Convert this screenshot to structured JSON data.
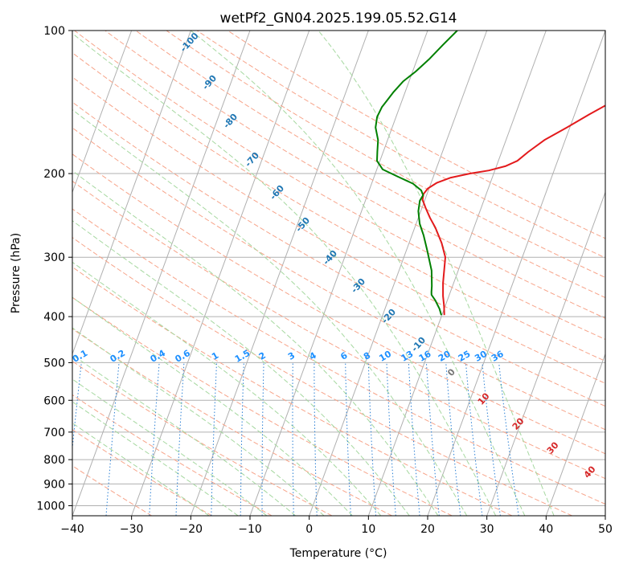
{
  "chart_data": {
    "type": "line",
    "title": "wetPf2_GN04.2025.199.05.52.G14",
    "xlabel": "Temperature (°C)",
    "ylabel": "Pressure (hPa)",
    "xlim": [
      -40,
      50
    ],
    "ylim": [
      1050,
      100
    ],
    "y_scale": "log",
    "grid": true,
    "x_ticks": [
      -40,
      -30,
      -20,
      -10,
      0,
      10,
      20,
      30,
      40,
      50
    ],
    "x_tick_labels": [
      "−40",
      "−30",
      "−20",
      "−10",
      "0",
      "10",
      "20",
      "30",
      "40",
      "50"
    ],
    "y_ticks": [
      1000,
      900,
      800,
      700,
      600,
      500,
      400,
      300,
      200,
      100
    ],
    "y_tick_labels": [
      "1000",
      "900",
      "800",
      "700",
      "600",
      "500",
      "400",
      "300",
      "200",
      "100"
    ],
    "series": [
      {
        "name": "",
        "color": "#e31a1c",
        "x": [
          10.4,
          9.8,
          9.0,
          8.2,
          7.0,
          5.5,
          3.5,
          2.0,
          0.6,
          -0.4,
          -0.6,
          -0.2,
          1.0,
          3.0,
          6.0,
          9.0,
          11.5,
          13.2,
          14.5,
          16.5,
          19.5,
          22.5,
          26.0,
          28.5,
          31.0,
          32.5,
          33.5,
          34.5
        ],
        "y": [
          397,
          380,
          362,
          340,
          300,
          280,
          260,
          248,
          236,
          227,
          221,
          215,
          209,
          204,
          200,
          197,
          193,
          188,
          180,
          170,
          160,
          150,
          140,
          133,
          122,
          115,
          108,
          100
        ]
      },
      {
        "name": "",
        "color": "#008000",
        "x": [
          9.9,
          9.2,
          8.0,
          7.0,
          6.8,
          6.5,
          5.5,
          3.5,
          2.0,
          0.6,
          -0.4,
          -0.8,
          -0.6,
          -1.2,
          -3.0,
          -6.0,
          -9.0,
          -10.5,
          -11.0,
          -11.6,
          -12.8,
          -13.2,
          -13.0,
          -12.5,
          -12.0,
          -11.0,
          -9.5,
          -8.0,
          -6.5,
          -5.0
        ],
        "y": [
          397,
          385,
          370,
          360,
          355,
          345,
          320,
          290,
          270,
          255,
          240,
          228,
          222,
          217,
          210,
          203,
          196,
          188,
          180,
          170,
          160,
          152,
          145,
          140,
          135,
          128,
          122,
          115,
          107,
          100
        ]
      }
    ],
    "dry_adiabat_labels": [
      "-100",
      "-90",
      "-80",
      "-70",
      "-60",
      "-50",
      "-40",
      "-30",
      "-20",
      "-10",
      "0",
      "10",
      "20",
      "30",
      "40"
    ],
    "mixing_ratio_labels": [
      "0.1",
      "0.2",
      "0.4",
      "0.6",
      "1",
      "1.5",
      "2",
      "3",
      "4",
      "6",
      "8",
      "10",
      "13",
      "16",
      "20",
      "25",
      "30",
      "36"
    ],
    "mixing_ratio_values": [
      0.1,
      0.2,
      0.4,
      0.6,
      1,
      1.5,
      2,
      3,
      4,
      6,
      8,
      10,
      13,
      16,
      20,
      25,
      30,
      36
    ],
    "colors": {
      "isotherm": "#b0b0b0",
      "isobar": "#b0b0b0",
      "dry_adiabat": "#f7a48a",
      "moist_adiabat": "#a6d8a0",
      "mixing_ratio": "#2a7fd4",
      "label_blue": "#1f77b4",
      "label_red": "#d62728",
      "label_zero": "#777777",
      "label_mixing": "#1e90ff"
    }
  }
}
